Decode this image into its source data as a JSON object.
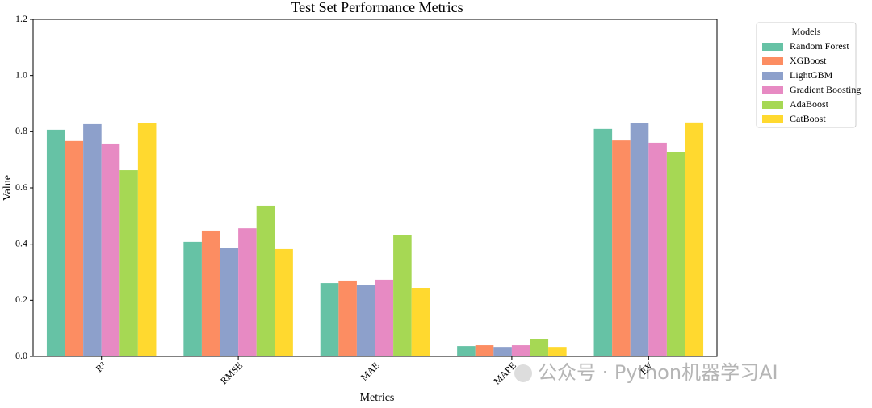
{
  "chart_data": {
    "type": "bar",
    "title": "Test Set Performance Metrics",
    "x_label": "Metrics",
    "y_label": "Value",
    "categories": [
      "R²",
      "RMSE",
      "MAE",
      "MAPE",
      "EV"
    ],
    "series": [
      {
        "name": "Random Forest",
        "color": "#66c2a5",
        "values": [
          0.807,
          0.408,
          0.261,
          0.037,
          0.81
        ]
      },
      {
        "name": "XGBoost",
        "color": "#fc8d62",
        "values": [
          0.767,
          0.448,
          0.27,
          0.04,
          0.769
        ]
      },
      {
        "name": "LightGBM",
        "color": "#8da0cb",
        "values": [
          0.827,
          0.385,
          0.253,
          0.034,
          0.83
        ]
      },
      {
        "name": "Gradient Boosting",
        "color": "#e78ac3",
        "values": [
          0.758,
          0.456,
          0.273,
          0.04,
          0.761
        ]
      },
      {
        "name": "AdaBoost",
        "color": "#a6d854",
        "values": [
          0.663,
          0.537,
          0.431,
          0.063,
          0.729
        ]
      },
      {
        "name": "CatBoost",
        "color": "#ffd92f",
        "values": [
          0.83,
          0.382,
          0.244,
          0.034,
          0.833
        ]
      }
    ],
    "legend_title": "Models",
    "legend_position": "outside upper right",
    "ylim": [
      0,
      1.2
    ],
    "yticks": [
      {
        "value": 0,
        "label": "0.0"
      },
      0.2,
      0.4,
      0.6,
      0.8,
      {
        "value": 1,
        "label": "1.0"
      },
      1.2
    ],
    "grid": false
  },
  "watermark": "公众号 · Python机器学习AI"
}
